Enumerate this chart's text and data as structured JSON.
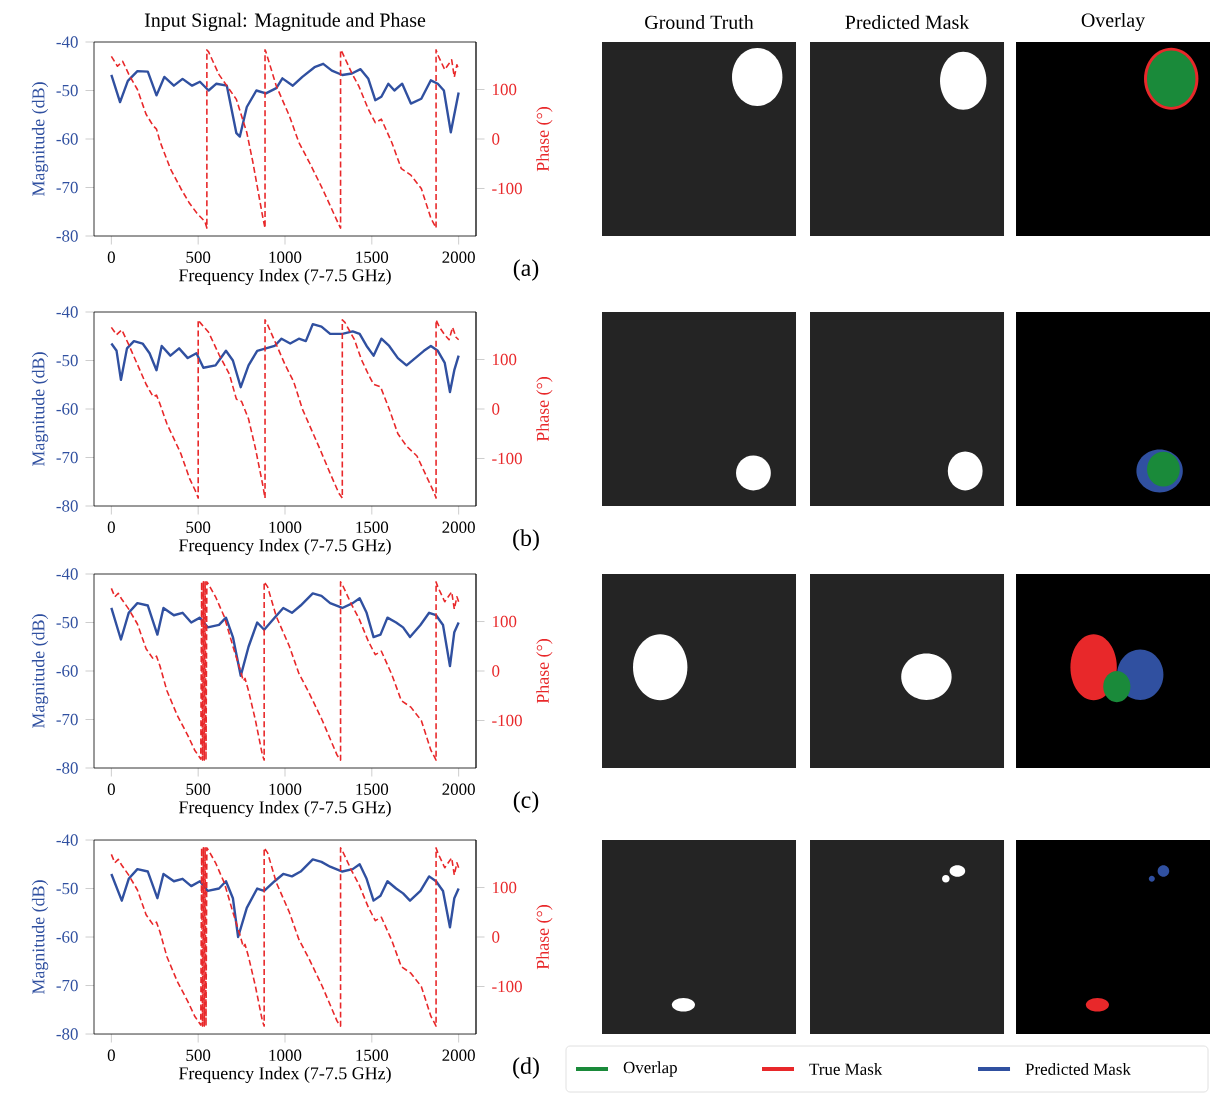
{
  "chart_data": [
    {
      "type": "line",
      "title": "Input Signal: Magnitude and Phase",
      "xlabel": "Frequency Index (7-7.5 GHz)",
      "ylabel": "Magnitude (dB)",
      "y2label": "Phase (°)",
      "annotations": [
        "(a)"
      ],
      "xlim": [
        -100,
        2100
      ],
      "xticks": [
        0,
        500,
        1000,
        1500,
        2000
      ],
      "ylim": [
        -80,
        -40
      ],
      "yticks": [
        -80,
        -70,
        -60,
        -50,
        -40
      ],
      "y2lim": [
        -196,
        196
      ],
      "y2ticks": [
        -100,
        0,
        100
      ],
      "series": [
        {
          "color": "#3050a0",
          "line_style": "solid",
          "x": [
            0,
            50,
            95,
            150,
            210,
            260,
            305,
            360,
            410,
            465,
            510,
            560,
            605,
            665,
            720,
            740,
            780,
            835,
            890,
            950,
            985,
            1045,
            1100,
            1170,
            1220,
            1270,
            1330,
            1385,
            1435,
            1480,
            1520,
            1555,
            1595,
            1630,
            1675,
            1725,
            1785,
            1840,
            1880,
            1915,
            1955,
            2000
          ],
          "values": [
            -46.8,
            -52.4,
            -48,
            -46,
            -46.1,
            -51,
            -47.2,
            -49,
            -47.6,
            -49,
            -48.2,
            -50,
            -48.6,
            -49,
            -58.8,
            -59.5,
            -53.4,
            -50,
            -50.6,
            -49.5,
            -47.5,
            -49,
            -47.2,
            -45.2,
            -44.5,
            -45.9,
            -46.8,
            -46.5,
            -45.6,
            -47.6,
            -52,
            -51.3,
            -48.6,
            -50,
            -48.6,
            -52.7,
            -51.7,
            -47.9,
            -48.6,
            -50,
            -58.6,
            -50.4
          ]
        },
        {
          "color": "#e8282a",
          "line_style": "dashed",
          "axis": "y2",
          "x": [
            0,
            35,
            65,
            100,
            150,
            200,
            240,
            260,
            280,
            340,
            400,
            450,
            493,
            539,
            550,
            550,
            560,
            620,
            680,
            720,
            780,
            815,
            873,
            885,
            885,
            890,
            950,
            1025,
            1080,
            1140,
            1215,
            1310,
            1320,
            1320,
            1328,
            1385,
            1425,
            1480,
            1520,
            1555,
            1615,
            1670,
            1725,
            1785,
            1840,
            1860,
            1870,
            1870,
            1880,
            1920,
            1940,
            1960,
            1975,
            1990,
            2000
          ],
          "values": [
            167,
            147,
            157,
            131,
            100,
            50,
            27,
            20,
            -5,
            -60,
            -100,
            -130,
            -150,
            -167,
            -180,
            180,
            176,
            130,
            100,
            80,
            13,
            -47,
            -160,
            -180,
            180,
            176,
            107,
            47,
            -7,
            -47,
            -100,
            -173,
            -180,
            180,
            176,
            133,
            107,
            60,
            33,
            40,
            -7,
            -60,
            -73,
            -100,
            -160,
            -173,
            -180,
            180,
            170,
            140,
            150,
            160,
            125,
            150,
            140
          ]
        }
      ]
    },
    {
      "type": "line",
      "xlabel": "Frequency Index (7-7.5 GHz)",
      "ylabel": "Magnitude (dB)",
      "y2label": "Phase (°)",
      "annotations": [
        "(b)"
      ],
      "xlim": [
        -100,
        2100
      ],
      "xticks": [
        0,
        500,
        1000,
        1500,
        2000
      ],
      "ylim": [
        -80,
        -40
      ],
      "yticks": [
        -80,
        -70,
        -60,
        -50,
        -40
      ],
      "y2lim": [
        -196,
        196
      ],
      "y2ticks": [
        -100,
        0,
        100
      ],
      "series": [
        {
          "color": "#3050a0",
          "line_style": "solid",
          "x": [
            0,
            30,
            55,
            90,
            130,
            180,
            220,
            260,
            290,
            340,
            390,
            440,
            490,
            530,
            600,
            660,
            700,
            745,
            790,
            840,
            890,
            940,
            980,
            1030,
            1080,
            1120,
            1160,
            1210,
            1260,
            1330,
            1390,
            1430,
            1470,
            1510,
            1555,
            1600,
            1650,
            1700,
            1750,
            1800,
            1840,
            1880,
            1920,
            1950,
            1975,
            2000
          ],
          "values": [
            -46.5,
            -48,
            -54,
            -47.5,
            -46,
            -46.5,
            -48.5,
            -52,
            -47,
            -49,
            -47.5,
            -49.5,
            -48.5,
            -51.5,
            -51,
            -48,
            -50,
            -55.5,
            -51,
            -48,
            -47.5,
            -47,
            -45.5,
            -46.5,
            -45.5,
            -46,
            -42.5,
            -43,
            -44.5,
            -44.5,
            -44,
            -44.5,
            -47,
            -49,
            -45.5,
            -47,
            -49.5,
            -51,
            -49.5,
            -48,
            -47,
            -48,
            -50.5,
            -56.5,
            -52,
            -49
          ]
        },
        {
          "color": "#e8282a",
          "line_style": "dashed",
          "axis": "y2",
          "x": [
            0,
            30,
            60,
            100,
            150,
            200,
            240,
            260,
            280,
            320,
            360,
            400,
            450,
            490,
            500,
            500,
            510,
            560,
            620,
            680,
            720,
            750,
            790,
            830,
            870,
            885,
            885,
            900,
            950,
            1000,
            1050,
            1100,
            1150,
            1200,
            1260,
            1310,
            1330,
            1330,
            1345,
            1400,
            1440,
            1480,
            1510,
            1550,
            1600,
            1650,
            1700,
            1760,
            1820,
            1860,
            1870,
            1870,
            1890,
            1920,
            1945,
            1965,
            1985,
            2000
          ],
          "values": [
            165,
            150,
            160,
            130,
            90,
            50,
            25,
            28,
            10,
            -30,
            -60,
            -90,
            -140,
            -170,
            -180,
            180,
            175,
            155,
            110,
            70,
            20,
            15,
            -20,
            -80,
            -150,
            -180,
            180,
            170,
            130,
            90,
            55,
            0,
            -40,
            -80,
            -130,
            -170,
            -180,
            180,
            175,
            140,
            100,
            70,
            50,
            45,
            0,
            -50,
            -75,
            -95,
            -140,
            -170,
            -180,
            180,
            165,
            150,
            140,
            165,
            145,
            140
          ]
        }
      ]
    },
    {
      "type": "line",
      "xlabel": "Frequency Index (7-7.5 GHz)",
      "ylabel": "Magnitude (dB)",
      "y2label": "Phase (°)",
      "annotations": [
        "(c)"
      ],
      "xlim": [
        -100,
        2100
      ],
      "xticks": [
        0,
        500,
        1000,
        1500,
        2000
      ],
      "ylim": [
        -80,
        -40
      ],
      "yticks": [
        -80,
        -70,
        -60,
        -50,
        -40
      ],
      "y2lim": [
        -196,
        196
      ],
      "y2ticks": [
        -100,
        0,
        100
      ],
      "series": [
        {
          "color": "#3050a0",
          "line_style": "solid",
          "x": [
            0,
            55,
            100,
            150,
            210,
            265,
            300,
            360,
            410,
            460,
            510,
            555,
            620,
            660,
            700,
            745,
            790,
            840,
            880,
            940,
            990,
            1040,
            1090,
            1160,
            1210,
            1260,
            1330,
            1390,
            1430,
            1470,
            1510,
            1550,
            1590,
            1640,
            1680,
            1720,
            1780,
            1830,
            1870,
            1910,
            1950,
            1975,
            2000
          ],
          "values": [
            -47,
            -53.5,
            -48,
            -46,
            -46.5,
            -52.5,
            -47,
            -48.5,
            -48,
            -50,
            -49,
            -51,
            -50.5,
            -49,
            -53,
            -61,
            -55,
            -50,
            -51.5,
            -49,
            -47,
            -48,
            -46.5,
            -44,
            -44.5,
            -46,
            -47,
            -46,
            -45,
            -48,
            -53,
            -52.5,
            -49,
            -50,
            -51,
            -53,
            -50.5,
            -48,
            -48.5,
            -50.5,
            -59,
            -52,
            -50
          ]
        },
        {
          "color": "#e8282a",
          "line_style": "dashed",
          "axis": "y2",
          "x": [
            0,
            20,
            40,
            60,
            100,
            150,
            200,
            240,
            260,
            280,
            320,
            380,
            440,
            480,
            515,
            520,
            525,
            530,
            535,
            540,
            545,
            550,
            560,
            600,
            650,
            700,
            740,
            760,
            770,
            790,
            830,
            870,
            880,
            880,
            900,
            950,
            1025,
            1080,
            1140,
            1215,
            1300,
            1320,
            1320,
            1328,
            1385,
            1425,
            1480,
            1520,
            1555,
            1615,
            1670,
            1725,
            1785,
            1840,
            1860,
            1870,
            1870,
            1880,
            1920,
            1940,
            1960,
            1975,
            1990,
            2000
          ],
          "values": [
            167,
            150,
            157,
            145,
            125,
            95,
            45,
            25,
            30,
            10,
            -40,
            -90,
            -130,
            -160,
            -178,
            180,
            -180,
            180,
            -180,
            180,
            -180,
            180,
            175,
            150,
            110,
            50,
            5,
            -20,
            -15,
            -40,
            -100,
            -170,
            -180,
            180,
            170,
            110,
            50,
            -5,
            -45,
            -100,
            -170,
            -180,
            180,
            176,
            133,
            107,
            60,
            33,
            40,
            -7,
            -60,
            -73,
            -100,
            -160,
            -173,
            -180,
            180,
            170,
            140,
            150,
            160,
            125,
            150,
            140
          ]
        }
      ]
    },
    {
      "type": "line",
      "xlabel": "Frequency Index (7-7.5 GHz)",
      "ylabel": "Magnitude (dB)",
      "y2label": "Phase (°)",
      "annotations": [
        "(d)"
      ],
      "xlim": [
        -100,
        2100
      ],
      "xticks": [
        0,
        500,
        1000,
        1500,
        2000
      ],
      "ylim": [
        -80,
        -40
      ],
      "yticks": [
        -80,
        -70,
        -60,
        -50,
        -40
      ],
      "y2lim": [
        -196,
        196
      ],
      "y2ticks": [
        -100,
        0,
        100
      ],
      "series": [
        {
          "color": "#3050a0",
          "line_style": "solid",
          "x": [
            0,
            60,
            100,
            150,
            210,
            265,
            300,
            360,
            410,
            460,
            510,
            555,
            620,
            660,
            700,
            730,
            780,
            840,
            880,
            940,
            990,
            1040,
            1090,
            1160,
            1210,
            1260,
            1330,
            1390,
            1430,
            1470,
            1510,
            1550,
            1590,
            1640,
            1680,
            1720,
            1780,
            1830,
            1870,
            1910,
            1950,
            1975,
            2000
          ],
          "values": [
            -47,
            -52.5,
            -48,
            -46,
            -46.5,
            -52,
            -47,
            -48.5,
            -48,
            -49.5,
            -48.5,
            -50.5,
            -50,
            -48.5,
            -52,
            -60,
            -54,
            -50,
            -50.5,
            -48.5,
            -47,
            -47.5,
            -46.5,
            -44,
            -44.5,
            -45.5,
            -46.5,
            -46,
            -45,
            -48,
            -52.5,
            -51.5,
            -48.5,
            -50,
            -51,
            -52.5,
            -50.5,
            -47.5,
            -48.5,
            -50.5,
            -58,
            -52,
            -50
          ]
        },
        {
          "color": "#e8282a",
          "line_style": "dashed",
          "axis": "y2",
          "x": [
            0,
            20,
            40,
            60,
            100,
            150,
            200,
            240,
            260,
            280,
            320,
            380,
            440,
            480,
            515,
            520,
            525,
            530,
            535,
            540,
            545,
            550,
            560,
            600,
            650,
            700,
            740,
            760,
            770,
            790,
            830,
            870,
            880,
            880,
            900,
            950,
            1025,
            1080,
            1140,
            1215,
            1300,
            1320,
            1320,
            1328,
            1385,
            1425,
            1480,
            1520,
            1555,
            1615,
            1670,
            1725,
            1785,
            1840,
            1860,
            1870,
            1870,
            1880,
            1920,
            1940,
            1960,
            1975,
            1990,
            2000
          ],
          "values": [
            167,
            150,
            157,
            145,
            125,
            95,
            45,
            25,
            30,
            10,
            -40,
            -90,
            -130,
            -160,
            -178,
            180,
            -180,
            180,
            -180,
            180,
            -180,
            180,
            175,
            150,
            110,
            50,
            5,
            -20,
            -15,
            -40,
            -100,
            -170,
            -180,
            180,
            170,
            110,
            50,
            -5,
            -45,
            -100,
            -170,
            -180,
            180,
            176,
            133,
            107,
            60,
            33,
            40,
            -7,
            -60,
            -73,
            -100,
            -160,
            -173,
            -180,
            180,
            170,
            140,
            150,
            160,
            125,
            150,
            140
          ]
        }
      ]
    },
    {
      "type": "other",
      "annotations": [
        "Ground Truth",
        "Predicted Mask",
        "Overlay"
      ],
      "categories": [
        "Overlap",
        "True Mask",
        "Predicted Mask"
      ],
      "colors": [
        "#1a8a3a",
        "#e8282a",
        "#3050a0"
      ]
    }
  ]
}
